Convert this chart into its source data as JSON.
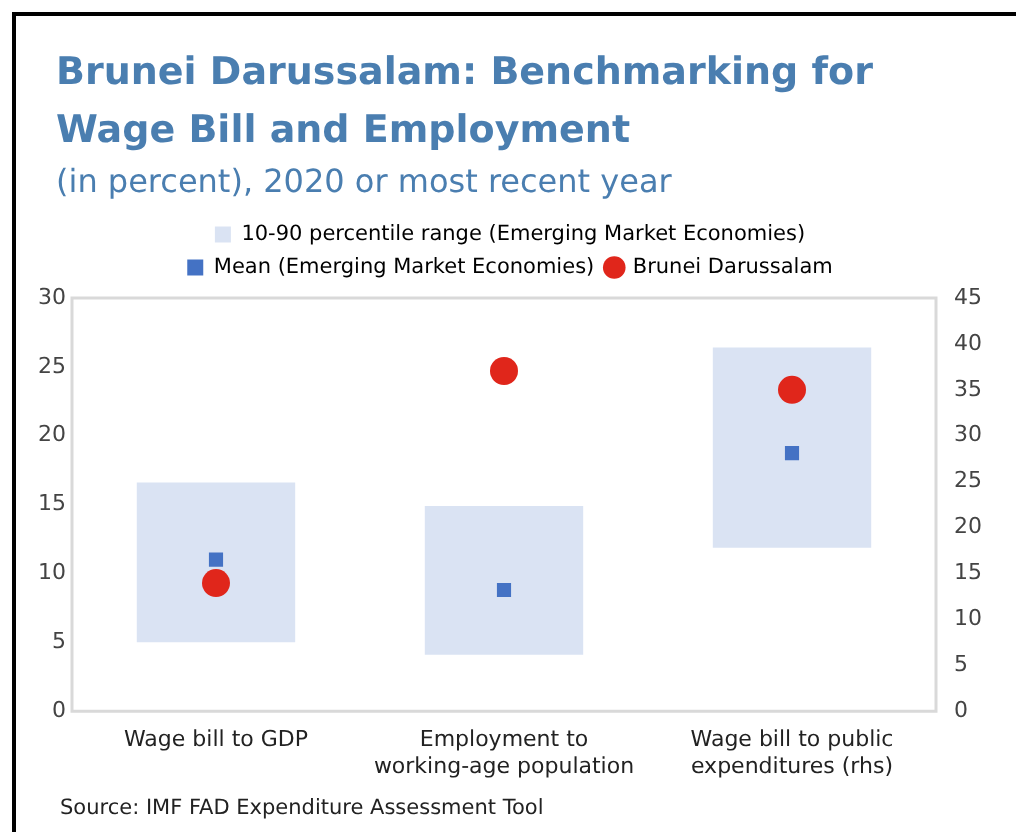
{
  "chart_data": {
    "type": "bar",
    "title": "Brunei Darussalam: Benchmarking for Wage Bill and Employment",
    "subtitle": "(in percent), 2020 or most recent year",
    "categories": [
      "Wage bill to GDP",
      "Employment to working-age population",
      "Wage bill to public expenditures (rhs)"
    ],
    "series": [
      {
        "name": "10-90 percentile range (Emerging Market Economies)",
        "type": "bar",
        "color": "#dae3f3",
        "values": [
          11.6,
          10.8,
          null
        ],
        "base": [
          5.0,
          4.1,
          null
        ]
      },
      {
        "type": "bar",
        "color": "#dae3f3",
        "axis": "y2",
        "values": [
          null,
          null,
          21.8
        ],
        "base": [
          null,
          null,
          17.8
        ]
      },
      {
        "name": "Mean (Emerging Market Economies)",
        "type": "scatter",
        "marker": "square",
        "color": "#4472c4",
        "values": [
          11.0,
          8.8,
          null
        ]
      },
      {
        "type": "scatter",
        "marker": "square",
        "color": "#4472c4",
        "axis": "y2",
        "values": [
          null,
          null,
          28.1
        ]
      },
      {
        "name": "Brunei Darussalam",
        "type": "scatter",
        "marker": "circle",
        "color": "#e0261b",
        "values": [
          9.3,
          24.7,
          null
        ]
      },
      {
        "type": "scatter",
        "marker": "circle",
        "color": "#e0261b",
        "axis": "y2",
        "values": [
          null,
          null,
          35.0
        ]
      }
    ],
    "ylim": [
      0,
      30
    ],
    "yticks": [
      0,
      5,
      10,
      15,
      20,
      25,
      30
    ],
    "y2lim": [
      0,
      45
    ],
    "y2ticks": [
      0,
      5,
      10,
      15,
      20,
      25,
      30,
      35,
      40,
      45
    ],
    "grid": false,
    "legend": "top",
    "annotations": [
      "Source: IMF FAD Expenditure Assessment Tool"
    ]
  }
}
